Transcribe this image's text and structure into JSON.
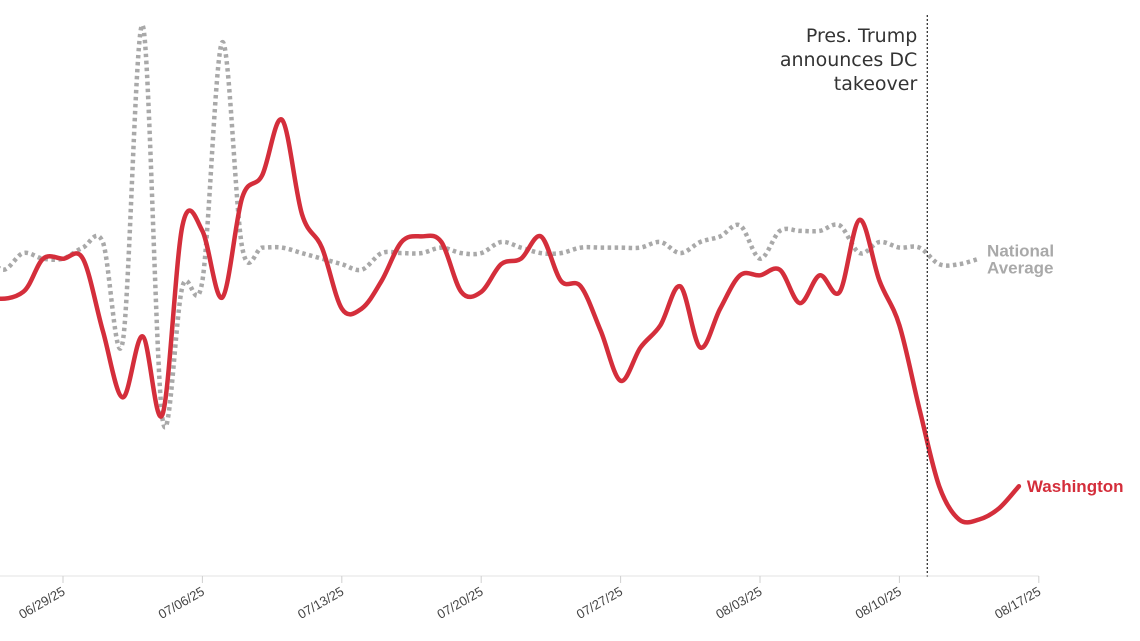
{
  "chart_data": {
    "type": "line",
    "title": "",
    "xlabel": "",
    "ylabel": "",
    "x_range": [
      -4.5,
      49
    ],
    "y_range": [
      0,
      100
    ],
    "x_ticks": [
      {
        "x": 0,
        "label": "06/29/25"
      },
      {
        "x": 7,
        "label": "07/06/25"
      },
      {
        "x": 14,
        "label": "07/13/25"
      },
      {
        "x": 21,
        "label": "07/20/25"
      },
      {
        "x": 28,
        "label": "07/27/25"
      },
      {
        "x": 35,
        "label": "08/03/25"
      },
      {
        "x": 42,
        "label": "08/10/25"
      },
      {
        "x": 49,
        "label": "08/17/25"
      }
    ],
    "series": [
      {
        "name": "National Average",
        "style": "dotted",
        "color": "#a9a9a9",
        "points": [
          [
            -4.5,
            56
          ],
          [
            -4,
            58
          ],
          [
            -3,
            55
          ],
          [
            -2,
            58
          ],
          [
            -1,
            57
          ],
          [
            0,
            57
          ],
          [
            1,
            59
          ],
          [
            2,
            60
          ],
          [
            3,
            42
          ],
          [
            4,
            99
          ],
          [
            5,
            28
          ],
          [
            6,
            52
          ],
          [
            7,
            53
          ],
          [
            8,
            96
          ],
          [
            9,
            59
          ],
          [
            10,
            59
          ],
          [
            11,
            59
          ],
          [
            12,
            58
          ],
          [
            13,
            57
          ],
          [
            14,
            56
          ],
          [
            15,
            55
          ],
          [
            16,
            58
          ],
          [
            17,
            58
          ],
          [
            18,
            58
          ],
          [
            19,
            59
          ],
          [
            20,
            58
          ],
          [
            21,
            58
          ],
          [
            22,
            60
          ],
          [
            23,
            59
          ],
          [
            24,
            58
          ],
          [
            25,
            58
          ],
          [
            26,
            59
          ],
          [
            27,
            59
          ],
          [
            28,
            59
          ],
          [
            29,
            59
          ],
          [
            30,
            60
          ],
          [
            31,
            58
          ],
          [
            32,
            60
          ],
          [
            33,
            61
          ],
          [
            34,
            63
          ],
          [
            35,
            57
          ],
          [
            36,
            62
          ],
          [
            37,
            62
          ],
          [
            38,
            62
          ],
          [
            39,
            63
          ],
          [
            40,
            58
          ],
          [
            41,
            60
          ],
          [
            42,
            59
          ],
          [
            43,
            59
          ],
          [
            44,
            56
          ],
          [
            45,
            56
          ],
          [
            46,
            57
          ]
        ]
      },
      {
        "name": "Washington",
        "style": "solid",
        "color": "#d42e3b",
        "points": [
          [
            -4.5,
            54
          ],
          [
            -3.5,
            50
          ],
          [
            -2,
            51
          ],
          [
            -1,
            57
          ],
          [
            0,
            57
          ],
          [
            1,
            57
          ],
          [
            2,
            44
          ],
          [
            3,
            32
          ],
          [
            4,
            43
          ],
          [
            5,
            29
          ],
          [
            6,
            63
          ],
          [
            7,
            62
          ],
          [
            8,
            50
          ],
          [
            9,
            68
          ],
          [
            10,
            72
          ],
          [
            11,
            82
          ],
          [
            12,
            65
          ],
          [
            13,
            59
          ],
          [
            14,
            48
          ],
          [
            15,
            48
          ],
          [
            16,
            53
          ],
          [
            17,
            60
          ],
          [
            18,
            61
          ],
          [
            19,
            60
          ],
          [
            20,
            51
          ],
          [
            21,
            51
          ],
          [
            22,
            56
          ],
          [
            23,
            57
          ],
          [
            24,
            61
          ],
          [
            25,
            53
          ],
          [
            26,
            52
          ],
          [
            27,
            44
          ],
          [
            28,
            35
          ],
          [
            29,
            41
          ],
          [
            30,
            45
          ],
          [
            31,
            52
          ],
          [
            32,
            41
          ],
          [
            33,
            48
          ],
          [
            34,
            54
          ],
          [
            35,
            54
          ],
          [
            36,
            55
          ],
          [
            37,
            49
          ],
          [
            38,
            54
          ],
          [
            39,
            51
          ],
          [
            40,
            64
          ],
          [
            41,
            53
          ],
          [
            42,
            45
          ],
          [
            43,
            30
          ],
          [
            44,
            16
          ],
          [
            45,
            10
          ],
          [
            46,
            10
          ],
          [
            47,
            12
          ],
          [
            48,
            16
          ]
        ]
      }
    ],
    "annotations": [
      {
        "x": 43.4,
        "label_lines": [
          "Pres. Trump",
          "announces DC",
          "takeover"
        ]
      }
    ]
  }
}
